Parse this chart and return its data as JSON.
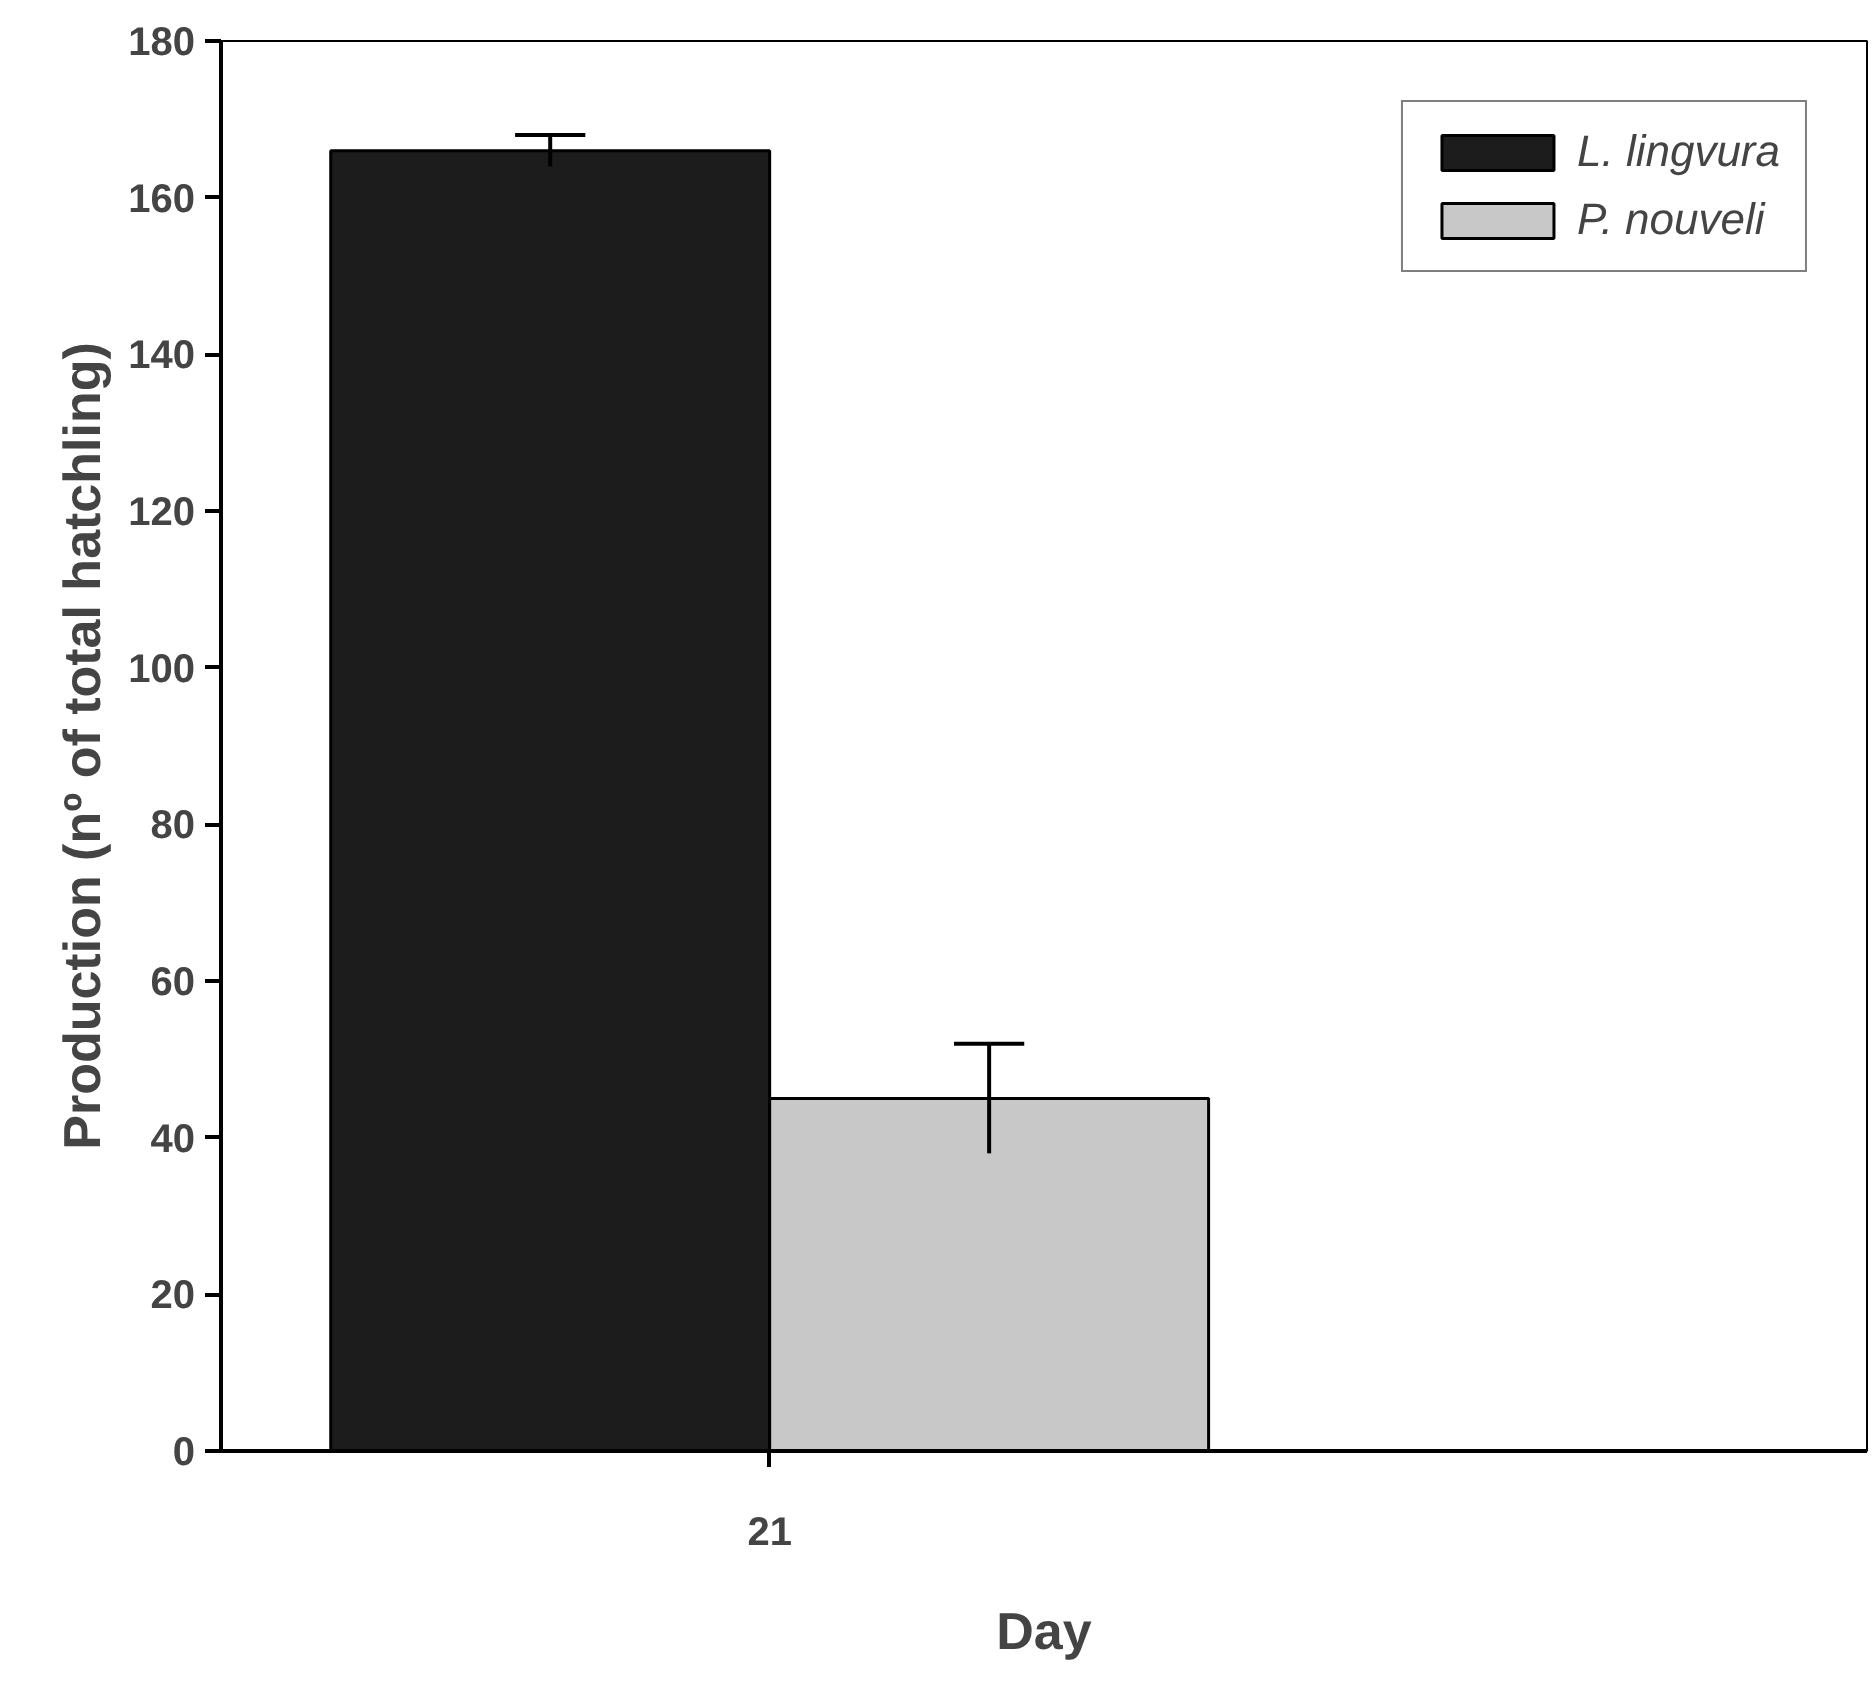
{
  "chart_data": {
    "type": "bar",
    "xlabel": "Day",
    "ylabel": "Production (nº of total hatchling)",
    "categories": [
      "21"
    ],
    "series": [
      {
        "name": "L. lingvura",
        "color": "#1c1c1c",
        "values": [
          166
        ],
        "errors": [
          2
        ]
      },
      {
        "name": "P. nouveli",
        "color": "#c8c8c8",
        "values": [
          45
        ],
        "errors": [
          7
        ]
      }
    ],
    "ylim": [
      0,
      180
    ],
    "yticks": [
      0,
      20,
      40,
      60,
      80,
      100,
      120,
      140,
      160,
      180
    ],
    "grid": false,
    "legend": "top right"
  }
}
